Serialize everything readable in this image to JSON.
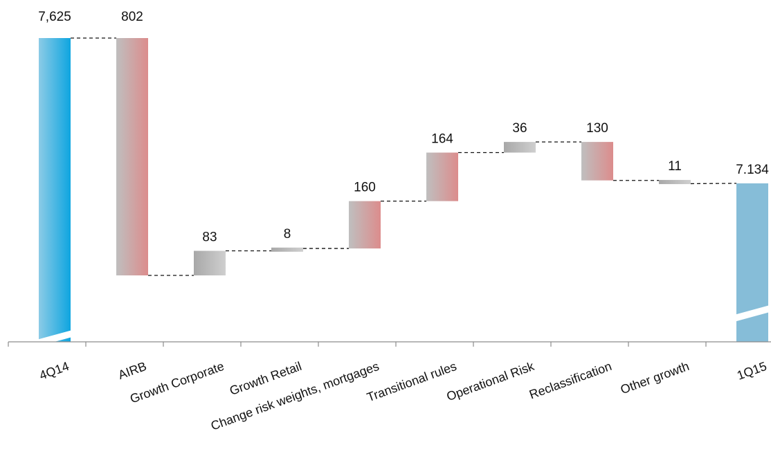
{
  "chart_data": {
    "type": "bar",
    "subtype": "waterfall",
    "title": "",
    "xlabel": "",
    "ylabel": "",
    "categories": [
      "4Q14",
      "AIRB",
      "Growth Corporate",
      "Growth Retail",
      "Change risk weights, mortgages",
      "Transitional rules",
      "Operational Risk",
      "Reclassification",
      "Other growth",
      "1Q15"
    ],
    "value_labels": [
      "7,625",
      "802",
      "83",
      "8",
      "160",
      "164",
      "36",
      "130",
      "11",
      "7.134"
    ],
    "bars": [
      {
        "kind": "total",
        "start": 0,
        "end": 7625
      },
      {
        "kind": "decrease",
        "start": 7625,
        "end": 6823
      },
      {
        "kind": "increase",
        "start": 6823,
        "end": 6906
      },
      {
        "kind": "increase",
        "start": 6906,
        "end": 6914
      },
      {
        "kind": "increase",
        "start": 6914,
        "end": 7074
      },
      {
        "kind": "increase",
        "start": 7074,
        "end": 7238
      },
      {
        "kind": "increase",
        "start": 7238,
        "end": 7274
      },
      {
        "kind": "decrease",
        "start": 7274,
        "end": 7144
      },
      {
        "kind": "decrease",
        "start": 7144,
        "end": 7133
      },
      {
        "kind": "total",
        "start": 0,
        "end": 7134
      }
    ],
    "ylim_broken": [
      6600,
      7700
    ],
    "axis_break": true,
    "grid": false,
    "legend": "none",
    "colors": {
      "total_first": "#1aa7dd",
      "total_last": "#86bdd8",
      "change_gray": "#bdbdbd",
      "change_red": "#d9898a",
      "axis": "#8c8c8c",
      "connector": "#111111"
    }
  }
}
